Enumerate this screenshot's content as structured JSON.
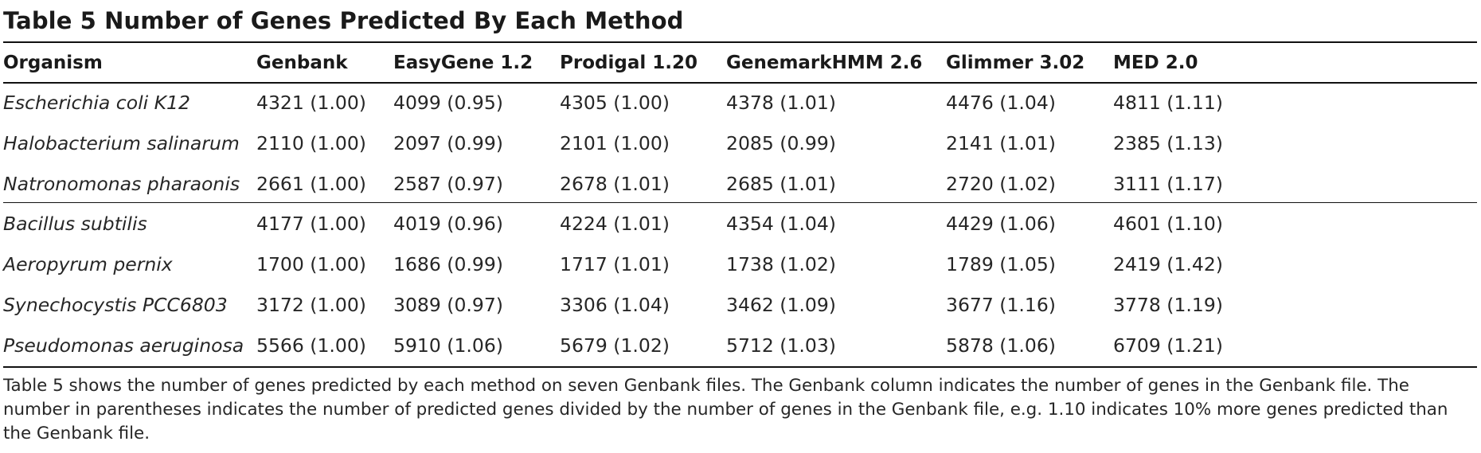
{
  "title": "Table 5 Number of Genes Predicted By Each Method",
  "columns": [
    "Organism",
    "Genbank",
    "EasyGene 1.2",
    "Prodigal 1.20",
    "GenemarkHMM 2.6",
    "Glimmer 3.02",
    "MED 2.0"
  ],
  "rows": [
    {
      "organism": "Escherichia coli K12",
      "values": [
        "4321 (1.00)",
        "4099 (0.95)",
        "4305 (1.00)",
        "4378 (1.01)",
        "4476 (1.04)",
        "4811 (1.11)"
      ]
    },
    {
      "organism": "Halobacterium salinarum",
      "values": [
        "2110 (1.00)",
        "2097 (0.99)",
        "2101 (1.00)",
        "2085 (0.99)",
        "2141 (1.01)",
        "2385 (1.13)"
      ]
    },
    {
      "organism": "Natronomonas pharaonis",
      "values": [
        "2661 (1.00)",
        "2587 (0.97)",
        "2678 (1.01)",
        "2685 (1.01)",
        "2720 (1.02)",
        "3111 (1.17)"
      ]
    },
    {
      "organism": "Bacillus subtilis",
      "values": [
        "4177 (1.00)",
        "4019 (0.96)",
        "4224 (1.01)",
        "4354 (1.04)",
        "4429 (1.06)",
        "4601 (1.10)"
      ]
    },
    {
      "organism": "Aeropyrum pernix",
      "values": [
        "1700 (1.00)",
        "1686 (0.99)",
        "1717 (1.01)",
        "1738 (1.02)",
        "1789 (1.05)",
        "2419 (1.42)"
      ]
    },
    {
      "organism": "Synechocystis PCC6803",
      "values": [
        "3172 (1.00)",
        "3089 (0.97)",
        "3306 (1.04)",
        "3462 (1.09)",
        "3677 (1.16)",
        "3778 (1.19)"
      ]
    },
    {
      "organism": "Pseudomonas aeruginosa",
      "values": [
        "5566 (1.00)",
        "5910 (1.06)",
        "5679 (1.02)",
        "5712 (1.03)",
        "5878 (1.06)",
        "6709 (1.21)"
      ]
    }
  ],
  "footnote": "Table 5 shows the number of genes predicted by each method on seven Genbank files. The Genbank column indicates the number of genes in the Genbank file. The number in parentheses indicates the number of predicted genes divided by the number of genes in the Genbank file, e.g. 1.10 indicates 10% more genes predicted than the Genbank file."
}
